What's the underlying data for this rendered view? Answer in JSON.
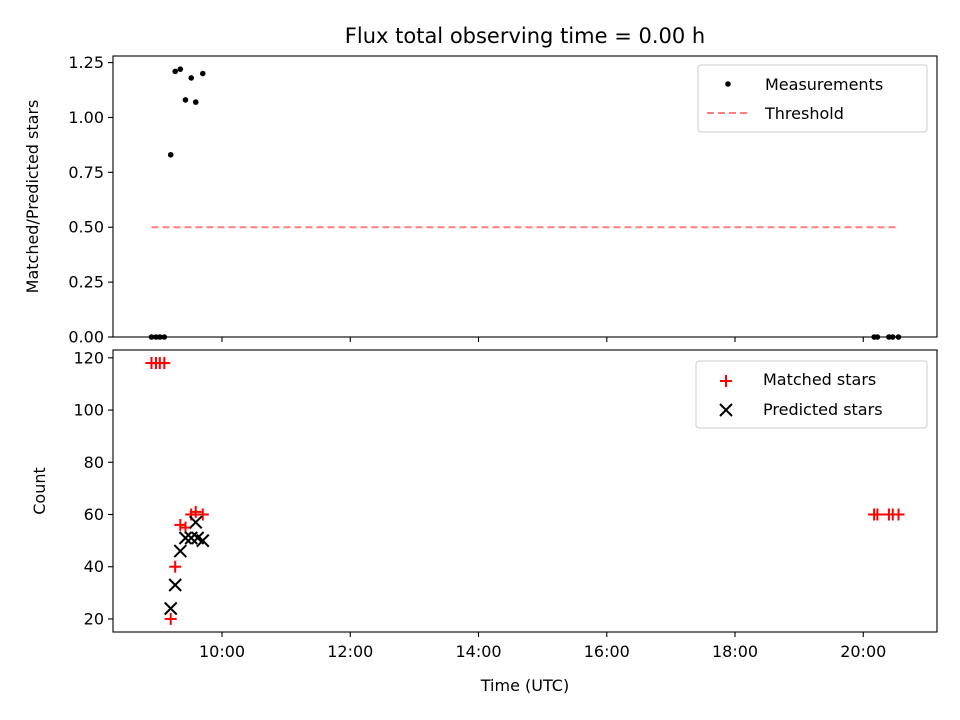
{
  "chart_data": [
    {
      "type": "scatter",
      "title": "Flux total observing time = 0.00 h",
      "xlabel": "",
      "ylabel": "Matched/Predicted stars",
      "xlim": [
        8.3,
        21.15
      ],
      "ylim": [
        0.0,
        1.28
      ],
      "x_ticks": [],
      "y_ticks": [
        {
          "value": 0.0,
          "label": "0.00"
        },
        {
          "value": 0.25,
          "label": "0.25"
        },
        {
          "value": 0.5,
          "label": "0.50"
        },
        {
          "value": 0.75,
          "label": "0.75"
        },
        {
          "value": 1.0,
          "label": "1.00"
        },
        {
          "value": 1.25,
          "label": "1.25"
        }
      ],
      "legend_position": "top-right",
      "series": [
        {
          "name": "Measurements",
          "kind": "points",
          "color": "#000000",
          "x": [
            8.9,
            8.97,
            9.03,
            9.1,
            9.2,
            9.27,
            9.35,
            9.43,
            9.52,
            9.59,
            9.7,
            20.17,
            20.22,
            20.4,
            20.46,
            20.55
          ],
          "y": [
            0.0,
            0.0,
            0.0,
            0.0,
            0.83,
            1.21,
            1.22,
            1.08,
            1.18,
            1.07,
            1.2,
            0.0,
            0.0,
            0.0,
            0.0,
            0.0
          ]
        },
        {
          "name": "Threshold",
          "kind": "dashed-line",
          "color": "#ff7f7f",
          "x": [
            8.9,
            20.55
          ],
          "y": [
            0.5,
            0.5
          ]
        }
      ]
    },
    {
      "type": "scatter",
      "title": "",
      "xlabel": "Time (UTC)",
      "ylabel": "Count",
      "xlim": [
        8.3,
        21.15
      ],
      "ylim": [
        15,
        123
      ],
      "x_ticks": [
        {
          "value": 10,
          "label": "10:00"
        },
        {
          "value": 12,
          "label": "12:00"
        },
        {
          "value": 14,
          "label": "14:00"
        },
        {
          "value": 16,
          "label": "16:00"
        },
        {
          "value": 18,
          "label": "18:00"
        },
        {
          "value": 20,
          "label": "20:00"
        }
      ],
      "y_ticks": [
        {
          "value": 20,
          "label": "20"
        },
        {
          "value": 40,
          "label": "40"
        },
        {
          "value": 60,
          "label": "60"
        },
        {
          "value": 80,
          "label": "80"
        },
        {
          "value": 100,
          "label": "100"
        },
        {
          "value": 120,
          "label": "120"
        }
      ],
      "legend_position": "top-right",
      "series": [
        {
          "name": "Matched stars",
          "kind": "plus",
          "color": "#ff0000",
          "x": [
            8.9,
            8.97,
            9.03,
            9.1,
            9.2,
            9.27,
            9.35,
            9.43,
            9.52,
            9.59,
            9.7,
            20.17,
            20.22,
            20.4,
            20.46,
            20.55
          ],
          "y": [
            118,
            118,
            118,
            118,
            20,
            40,
            56,
            55,
            60,
            61,
            60,
            60,
            60,
            60,
            60,
            60
          ]
        },
        {
          "name": "Predicted stars",
          "kind": "x",
          "color": "#000000",
          "x": [
            9.2,
            9.27,
            9.35,
            9.43,
            9.52,
            9.59,
            9.62,
            9.7
          ],
          "y": [
            24,
            33,
            46,
            51,
            51,
            57,
            51,
            50
          ]
        }
      ]
    }
  ]
}
